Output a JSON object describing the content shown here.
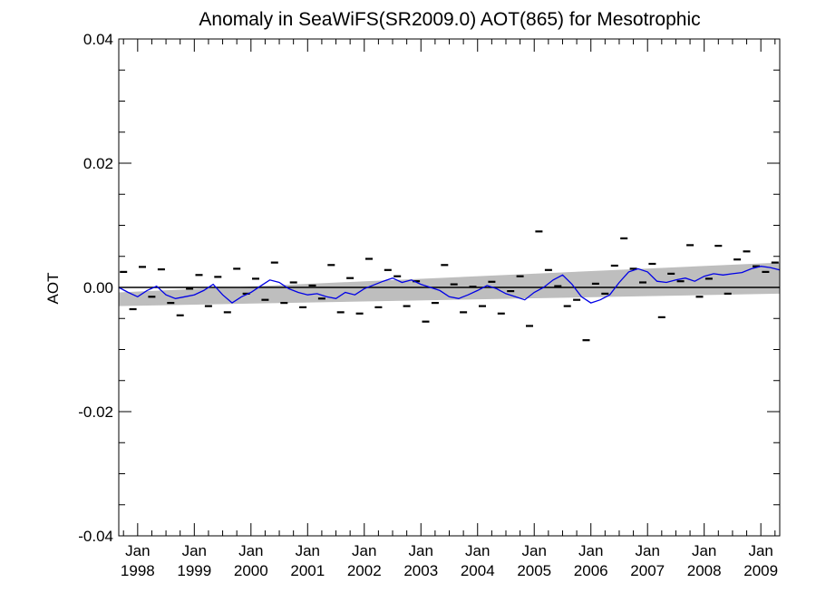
{
  "chart_data": {
    "type": "line",
    "title": "Anomaly in SeaWiFS(SR2009.0) AOT(865) for Mesotrophic",
    "xlabel": "",
    "ylabel": "AOT",
    "xlim": [
      "1997-09",
      "2009-05"
    ],
    "ylim": [
      -0.04,
      0.04
    ],
    "x_ticks": [
      {
        "date": "1998-01",
        "label": [
          "Jan",
          "1998"
        ]
      },
      {
        "date": "1999-01",
        "label": [
          "Jan",
          "1999"
        ]
      },
      {
        "date": "2000-01",
        "label": [
          "Jan",
          "2000"
        ]
      },
      {
        "date": "2001-01",
        "label": [
          "Jan",
          "2001"
        ]
      },
      {
        "date": "2002-01",
        "label": [
          "Jan",
          "2002"
        ]
      },
      {
        "date": "2003-01",
        "label": [
          "Jan",
          "2003"
        ]
      },
      {
        "date": "2004-01",
        "label": [
          "Jan",
          "2004"
        ]
      },
      {
        "date": "2005-01",
        "label": [
          "Jan",
          "2005"
        ]
      },
      {
        "date": "2006-01",
        "label": [
          "Jan",
          "2006"
        ]
      },
      {
        "date": "2007-01",
        "label": [
          "Jan",
          "2007"
        ]
      },
      {
        "date": "2008-01",
        "label": [
          "Jan",
          "2008"
        ]
      },
      {
        "date": "2009-01",
        "label": [
          "Jan",
          "2009"
        ]
      }
    ],
    "y_ticks": [
      {
        "value": 0.04,
        "label": "0.04"
      },
      {
        "value": 0.02,
        "label": "0.02"
      },
      {
        "value": 0.0,
        "label": "0.00"
      },
      {
        "value": -0.02,
        "label": "-0.02"
      },
      {
        "value": -0.04,
        "label": "-0.04"
      }
    ],
    "y_minor_step": 0.005,
    "grid": false,
    "colors": {
      "smoothed": "#0000e6",
      "band": "#bebebe",
      "zero": "#000000",
      "points": "#000000"
    },
    "band": {
      "x": [
        "1997-09",
        "2009-05"
      ],
      "lower": [
        -0.003,
        -0.001
      ],
      "upper": [
        -0.0008,
        0.004
      ]
    },
    "zero_line": 0.0,
    "series": [
      {
        "style": "dash-markers",
        "x": [
          "1997-10",
          "1997-12",
          "1998-02",
          "1998-04",
          "1998-06",
          "1998-08",
          "1998-10",
          "1998-12",
          "1999-02",
          "1999-04",
          "1999-06",
          "1999-08",
          "1999-10",
          "1999-12",
          "2000-02",
          "2000-04",
          "2000-06",
          "2000-08",
          "2000-10",
          "2000-12",
          "2001-02",
          "2001-04",
          "2001-06",
          "2001-08",
          "2001-10",
          "2001-12",
          "2002-02",
          "2002-04",
          "2002-06",
          "2002-08",
          "2002-10",
          "2002-12",
          "2003-02",
          "2003-04",
          "2003-06",
          "2003-08",
          "2003-10",
          "2003-12",
          "2004-02",
          "2004-04",
          "2004-06",
          "2004-08",
          "2004-10",
          "2004-12",
          "2005-02",
          "2005-04",
          "2005-06",
          "2005-08",
          "2005-10",
          "2005-12",
          "2006-02",
          "2006-04",
          "2006-06",
          "2006-08",
          "2006-10",
          "2006-12",
          "2007-02",
          "2007-04",
          "2007-06",
          "2007-08",
          "2007-10",
          "2007-12",
          "2008-02",
          "2008-04",
          "2008-06",
          "2008-08",
          "2008-10",
          "2008-12",
          "2009-02",
          "2009-04"
        ],
        "y": [
          0.0025,
          -0.0035,
          0.0033,
          -0.0015,
          0.0029,
          -0.0025,
          -0.0045,
          -0.0002,
          0.002,
          -0.003,
          0.0017,
          -0.004,
          0.003,
          -0.001,
          0.0014,
          -0.002,
          0.004,
          -0.0025,
          0.0008,
          -0.0032,
          0.0003,
          -0.0018,
          0.0036,
          -0.004,
          0.0015,
          -0.0042,
          0.0046,
          -0.0032,
          0.0028,
          0.0018,
          -0.003,
          0.001,
          -0.0055,
          -0.0025,
          0.0036,
          0.0005,
          -0.004,
          0.0001,
          -0.003,
          0.0009,
          -0.0042,
          -0.0006,
          0.0018,
          -0.0062,
          0.009,
          0.0028,
          0.0002,
          -0.003,
          -0.002,
          -0.0085,
          0.0006,
          -0.001,
          0.0035,
          0.0079,
          0.003,
          0.0008,
          0.0038,
          -0.0048,
          0.0022,
          0.001,
          0.0068,
          -0.0015,
          0.0014,
          0.0067,
          -0.001,
          0.0045,
          0.0058,
          0.0034,
          0.0025,
          0.004
        ]
      },
      {
        "style": "line",
        "x": [
          "1997-09",
          "1997-11",
          "1998-01",
          "1998-03",
          "1998-05",
          "1998-07",
          "1998-09",
          "1998-11",
          "1999-01",
          "1999-03",
          "1999-05",
          "1999-07",
          "1999-09",
          "1999-11",
          "2000-01",
          "2000-03",
          "2000-05",
          "2000-07",
          "2000-09",
          "2000-11",
          "2001-01",
          "2001-03",
          "2001-05",
          "2001-07",
          "2001-09",
          "2001-11",
          "2002-01",
          "2002-03",
          "2002-05",
          "2002-07",
          "2002-09",
          "2002-11",
          "2003-01",
          "2003-03",
          "2003-05",
          "2003-07",
          "2003-09",
          "2003-11",
          "2004-01",
          "2004-03",
          "2004-05",
          "2004-07",
          "2004-09",
          "2004-11",
          "2005-01",
          "2005-03",
          "2005-05",
          "2005-07",
          "2005-09",
          "2005-11",
          "2006-01",
          "2006-03",
          "2006-05",
          "2006-07",
          "2006-09",
          "2006-11",
          "2007-01",
          "2007-03",
          "2007-05",
          "2007-07",
          "2007-09",
          "2007-11",
          "2008-01",
          "2008-03",
          "2008-05",
          "2008-07",
          "2008-09",
          "2008-11",
          "2009-01",
          "2009-03",
          "2009-05"
        ],
        "y": [
          0.0,
          -0.0008,
          -0.0015,
          -0.0005,
          0.0002,
          -0.0012,
          -0.0018,
          -0.0015,
          -0.0012,
          -0.0005,
          0.0005,
          -0.0012,
          -0.0025,
          -0.0015,
          -0.0008,
          0.0002,
          0.0012,
          0.0008,
          -0.0002,
          -0.0008,
          -0.0012,
          -0.001,
          -0.0015,
          -0.0018,
          -0.0008,
          -0.0012,
          -0.0002,
          0.0004,
          0.001,
          0.0015,
          0.0008,
          0.0012,
          0.0005,
          0.0,
          -0.0005,
          -0.0015,
          -0.0018,
          -0.0012,
          -0.0005,
          0.0003,
          -0.0002,
          -0.001,
          -0.0015,
          -0.002,
          -0.0008,
          0.0,
          0.0012,
          0.002,
          0.0005,
          -0.0015,
          -0.0025,
          -0.002,
          -0.0012,
          0.0008,
          0.0025,
          0.003,
          0.0025,
          0.001,
          0.0008,
          0.0012,
          0.0015,
          0.001,
          0.0018,
          0.0022,
          0.002,
          0.0022,
          0.0024,
          0.003,
          0.0034,
          0.0032,
          0.0028
        ]
      }
    ]
  }
}
